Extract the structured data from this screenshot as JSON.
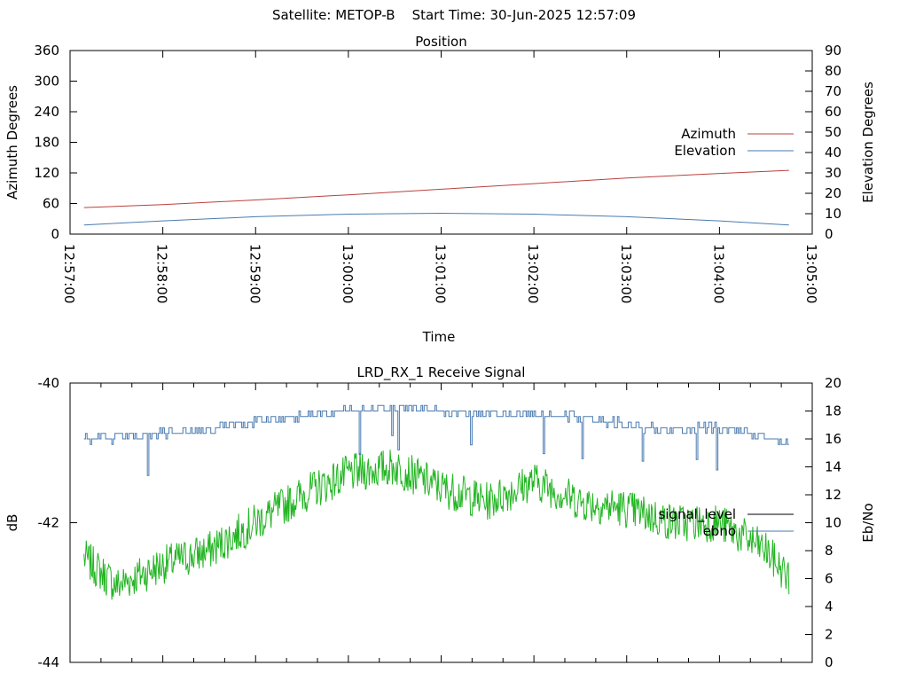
{
  "header": {
    "title": "Satellite: METOP-B    Start Time: 30-Jun-2025 12:57:09"
  },
  "chart_data": [
    {
      "type": "line",
      "title": "Position",
      "xlabel": "Time",
      "ylabel": "Azimuth Degrees",
      "y2label": "Elevation Degrees",
      "x_ticks": [
        "12:57:00",
        "12:58:00",
        "12:59:00",
        "13:00:00",
        "13:01:00",
        "13:02:00",
        "13:03:00",
        "13:04:00",
        "13:05:00"
      ],
      "y_ticks": [
        "0",
        "60",
        "120",
        "180",
        "240",
        "300",
        "360"
      ],
      "y2_ticks": [
        "0",
        "10",
        "20",
        "30",
        "40",
        "50",
        "60",
        "70",
        "80",
        "90"
      ],
      "ylim": [
        0,
        360
      ],
      "y2lim": [
        0,
        90
      ],
      "legend_position": "right",
      "colors": {
        "azimuth": "#b8413e",
        "elevation": "#4a7bb0"
      },
      "series": [
        {
          "name": "Azimuth",
          "axis": "y",
          "x": [
            "12:57:09",
            "12:58:00",
            "12:59:00",
            "13:00:00",
            "13:01:00",
            "13:02:00",
            "13:03:00",
            "13:04:00",
            "13:04:45"
          ],
          "values": [
            52,
            58,
            67,
            77,
            88,
            99,
            110,
            119,
            125
          ]
        },
        {
          "name": "Elevation",
          "axis": "y2",
          "x": [
            "12:57:09",
            "12:58:00",
            "12:59:00",
            "13:00:00",
            "13:01:00",
            "13:02:00",
            "13:03:00",
            "13:04:00",
            "13:04:45"
          ],
          "values": [
            4.5,
            6.5,
            8.5,
            9.8,
            10.2,
            9.8,
            8.5,
            6.5,
            4.5
          ]
        }
      ]
    },
    {
      "type": "line",
      "title": "LRD_RX_1 Receive Signal",
      "xlabel": "",
      "ylabel": "dB",
      "y2label": "Eb/No",
      "y_ticks": [
        "-40",
        "-42",
        "-44"
      ],
      "y2_ticks": [
        "0",
        "2",
        "4",
        "6",
        "8",
        "10",
        "12",
        "14",
        "16",
        "18",
        "20"
      ],
      "ylim": [
        -44,
        -40
      ],
      "y2lim": [
        0,
        20
      ],
      "legend_position": "right",
      "colors": {
        "signal_level": "#000000",
        "ebno": "#4a7bb0",
        "green_trace": "#22b522"
      },
      "series": [
        {
          "name": "signal_level",
          "axis": "y",
          "x": [
            "12:57:09",
            "12:57:30",
            "12:58:00",
            "12:58:30",
            "12:59:00",
            "12:59:30",
            "13:00:00",
            "13:00:30",
            "13:01:00",
            "13:01:30",
            "13:02:00",
            "13:02:30",
            "13:03:00",
            "13:03:30",
            "13:04:00",
            "13:04:30",
            "13:04:45"
          ],
          "values": [
            -42.5,
            -42.9,
            -42.6,
            -42.4,
            -42.0,
            -41.6,
            -41.3,
            -41.2,
            -41.5,
            -41.7,
            -41.4,
            -41.7,
            -41.8,
            -42.0,
            -42.0,
            -42.4,
            -42.8
          ]
        },
        {
          "name": "ebno",
          "axis": "y2",
          "x": [
            "12:57:09",
            "12:57:30",
            "12:58:00",
            "12:58:30",
            "12:59:00",
            "12:59:30",
            "13:00:00",
            "13:00:30",
            "13:01:00",
            "13:01:30",
            "13:02:00",
            "13:02:30",
            "13:03:00",
            "13:03:30",
            "13:04:00",
            "13:04:30",
            "13:04:45"
          ],
          "values": [
            16.0,
            16.1,
            16.4,
            16.8,
            17.3,
            17.7,
            18.0,
            18.2,
            18.0,
            17.7,
            17.8,
            17.6,
            17.0,
            16.7,
            16.8,
            16.3,
            15.5
          ]
        }
      ]
    }
  ]
}
